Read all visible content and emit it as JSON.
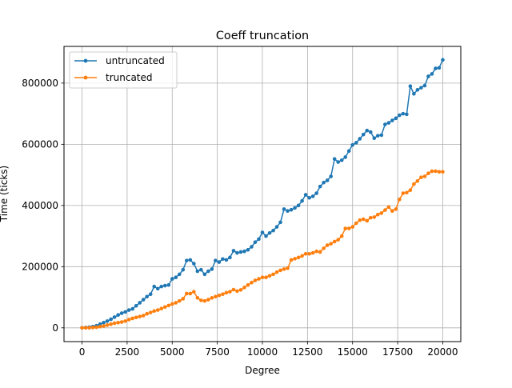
{
  "chart_data": {
    "type": "line",
    "title": "Coeff truncation",
    "xlabel": "Degree",
    "ylabel": "Time (ticks)",
    "xlim": [
      -1000,
      21000
    ],
    "ylim": [
      -45000,
      920000
    ],
    "x_ticks": [
      0,
      2500,
      5000,
      7500,
      10000,
      12500,
      15000,
      17500,
      20000
    ],
    "x_tick_labels": [
      "0",
      "2500",
      "5000",
      "7500",
      "10000",
      "12500",
      "15000",
      "17500",
      "20000"
    ],
    "y_ticks": [
      0,
      200000,
      400000,
      600000,
      800000
    ],
    "y_tick_labels": [
      "0",
      "200000",
      "400000",
      "600000",
      "800000"
    ],
    "grid": true,
    "legend_position": "top-left",
    "series": [
      {
        "name": "untruncated",
        "color": "#1f77b4",
        "x": [
          0,
          200,
          400,
          600,
          800,
          1000,
          1200,
          1400,
          1600,
          1800,
          2000,
          2200,
          2400,
          2600,
          2800,
          3000,
          3200,
          3400,
          3600,
          3800,
          4000,
          4200,
          4400,
          4600,
          4800,
          5000,
          5200,
          5400,
          5600,
          5800,
          6000,
          6200,
          6400,
          6600,
          6800,
          7000,
          7200,
          7400,
          7600,
          7800,
          8000,
          8200,
          8400,
          8600,
          8800,
          9000,
          9200,
          9400,
          9600,
          9800,
          10000,
          10200,
          10400,
          10600,
          10800,
          11000,
          11200,
          11400,
          11600,
          11800,
          12000,
          12200,
          12400,
          12600,
          12800,
          13000,
          13200,
          13400,
          13600,
          13800,
          14000,
          14200,
          14400,
          14600,
          14800,
          15000,
          15200,
          15400,
          15600,
          15800,
          16000,
          16200,
          16400,
          16600,
          16800,
          17000,
          17200,
          17400,
          17600,
          17800,
          18000,
          18200,
          18400,
          18600,
          18800,
          19000,
          19200,
          19400,
          19600,
          19800,
          20000
        ],
        "values": [
          0,
          1000,
          2000,
          4000,
          7000,
          12000,
          17000,
          22000,
          28000,
          35000,
          42000,
          48000,
          52000,
          58000,
          62000,
          72000,
          82000,
          92000,
          102000,
          110000,
          135000,
          128000,
          135000,
          138000,
          140000,
          160000,
          165000,
          175000,
          190000,
          220000,
          222000,
          210000,
          185000,
          190000,
          175000,
          185000,
          192000,
          220000,
          215000,
          225000,
          222000,
          230000,
          252000,
          245000,
          248000,
          250000,
          255000,
          265000,
          280000,
          290000,
          312000,
          300000,
          310000,
          318000,
          330000,
          345000,
          388000,
          382000,
          386000,
          392000,
          400000,
          415000,
          435000,
          425000,
          430000,
          440000,
          462000,
          475000,
          482000,
          495000,
          552000,
          542000,
          548000,
          558000,
          578000,
          598000,
          605000,
          618000,
          632000,
          645000,
          640000,
          620000,
          628000,
          630000,
          665000,
          670000,
          678000,
          685000,
          695000,
          700000,
          698000,
          790000,
          765000,
          778000,
          785000,
          792000,
          822000,
          830000,
          848000,
          850000,
          876000
        ]
      },
      {
        "name": "truncated",
        "color": "#ff7f0e",
        "x": [
          0,
          200,
          400,
          600,
          800,
          1000,
          1200,
          1400,
          1600,
          1800,
          2000,
          2200,
          2400,
          2600,
          2800,
          3000,
          3200,
          3400,
          3600,
          3800,
          4000,
          4200,
          4400,
          4600,
          4800,
          5000,
          5200,
          5400,
          5600,
          5800,
          6000,
          6200,
          6400,
          6600,
          6800,
          7000,
          7200,
          7400,
          7600,
          7800,
          8000,
          8200,
          8400,
          8600,
          8800,
          9000,
          9200,
          9400,
          9600,
          9800,
          10000,
          10200,
          10400,
          10600,
          10800,
          11000,
          11200,
          11400,
          11600,
          11800,
          12000,
          12200,
          12400,
          12600,
          12800,
          13000,
          13200,
          13400,
          13600,
          13800,
          14000,
          14200,
          14400,
          14600,
          14800,
          15000,
          15200,
          15400,
          15600,
          15800,
          16000,
          16200,
          16400,
          16600,
          16800,
          17000,
          17200,
          17400,
          17600,
          17800,
          18000,
          18200,
          18400,
          18600,
          18800,
          19000,
          19200,
          19400,
          19600,
          19800,
          20000
        ],
        "values": [
          0,
          0,
          0,
          1000,
          2000,
          4000,
          6000,
          9000,
          12000,
          15000,
          17000,
          19000,
          22000,
          27000,
          31000,
          34000,
          37000,
          40000,
          46000,
          50000,
          55000,
          58000,
          63000,
          68000,
          73000,
          78000,
          82000,
          88000,
          95000,
          112000,
          112000,
          118000,
          98000,
          90000,
          88000,
          92000,
          98000,
          102000,
          106000,
          110000,
          115000,
          118000,
          125000,
          120000,
          124000,
          132000,
          140000,
          148000,
          155000,
          160000,
          165000,
          165000,
          170000,
          175000,
          182000,
          188000,
          192000,
          195000,
          222000,
          226000,
          230000,
          235000,
          242000,
          242000,
          245000,
          250000,
          248000,
          260000,
          270000,
          275000,
          282000,
          288000,
          300000,
          325000,
          325000,
          330000,
          342000,
          352000,
          355000,
          350000,
          360000,
          362000,
          370000,
          375000,
          385000,
          395000,
          382000,
          388000,
          420000,
          440000,
          442000,
          450000,
          470000,
          480000,
          492000,
          495000,
          505000,
          512000,
          512000,
          510000,
          510000
        ]
      }
    ]
  }
}
